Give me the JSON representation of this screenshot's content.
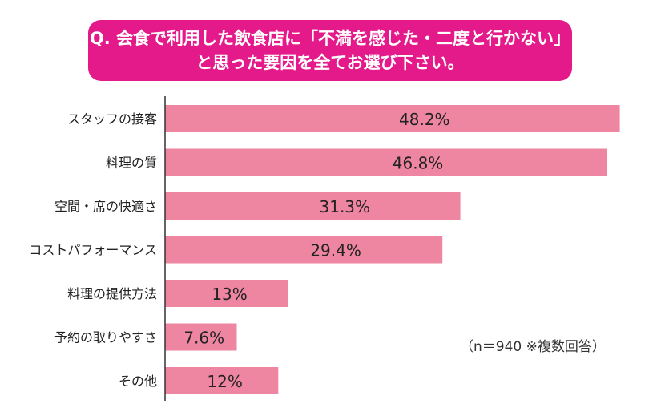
{
  "question": {
    "line1": "Q. 会食で利用した飲食店に「不満を感じた・二度と行かない」",
    "line2": "と思った要因を全てお選び下さい。"
  },
  "note": "（n＝940 ※複数回答）",
  "colors": {
    "header_bg": "#e4198a",
    "bar": "#ee86a1",
    "axis": "#333333"
  },
  "chart_data": {
    "type": "bar",
    "orientation": "horizontal",
    "categories": [
      "スタッフの接客",
      "料理の質",
      "空間・席の快適さ",
      "コストパフォーマンス",
      "料理の提供方法",
      "予約の取りやすさ",
      "その他"
    ],
    "values": [
      48.2,
      46.8,
      31.3,
      29.4,
      13,
      7.6,
      12
    ],
    "value_labels": [
      "48.2%",
      "46.8%",
      "31.3%",
      "29.4%",
      "13%",
      "7.6%",
      "12%"
    ],
    "unit": "%",
    "xlim": [
      0,
      49
    ]
  }
}
